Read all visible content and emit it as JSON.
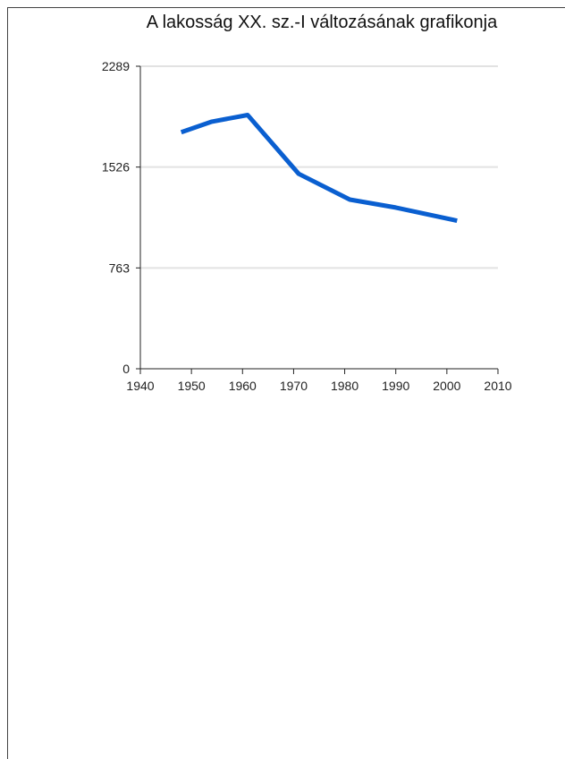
{
  "chart_data": {
    "type": "line",
    "title": "A lakosság XX. sz.-I változásának grafikonja",
    "xlabel": "",
    "ylabel": "",
    "xlim": [
      1940,
      2010
    ],
    "ylim": [
      0,
      2289
    ],
    "xticks": [
      1940,
      1950,
      1960,
      1970,
      1980,
      1990,
      2000,
      2010
    ],
    "yticks": [
      0,
      763,
      1526,
      2289
    ],
    "grid": "horizontal",
    "colors": {
      "line": "#0a5fd0",
      "grid": "#e2e2e2",
      "axis": "#222222"
    },
    "series": [
      {
        "x": [
          1948,
          1954,
          1961,
          1971,
          1981,
          1990,
          2002
        ],
        "y": [
          1790,
          1870,
          1920,
          1475,
          1280,
          1220,
          1120
        ]
      }
    ]
  }
}
